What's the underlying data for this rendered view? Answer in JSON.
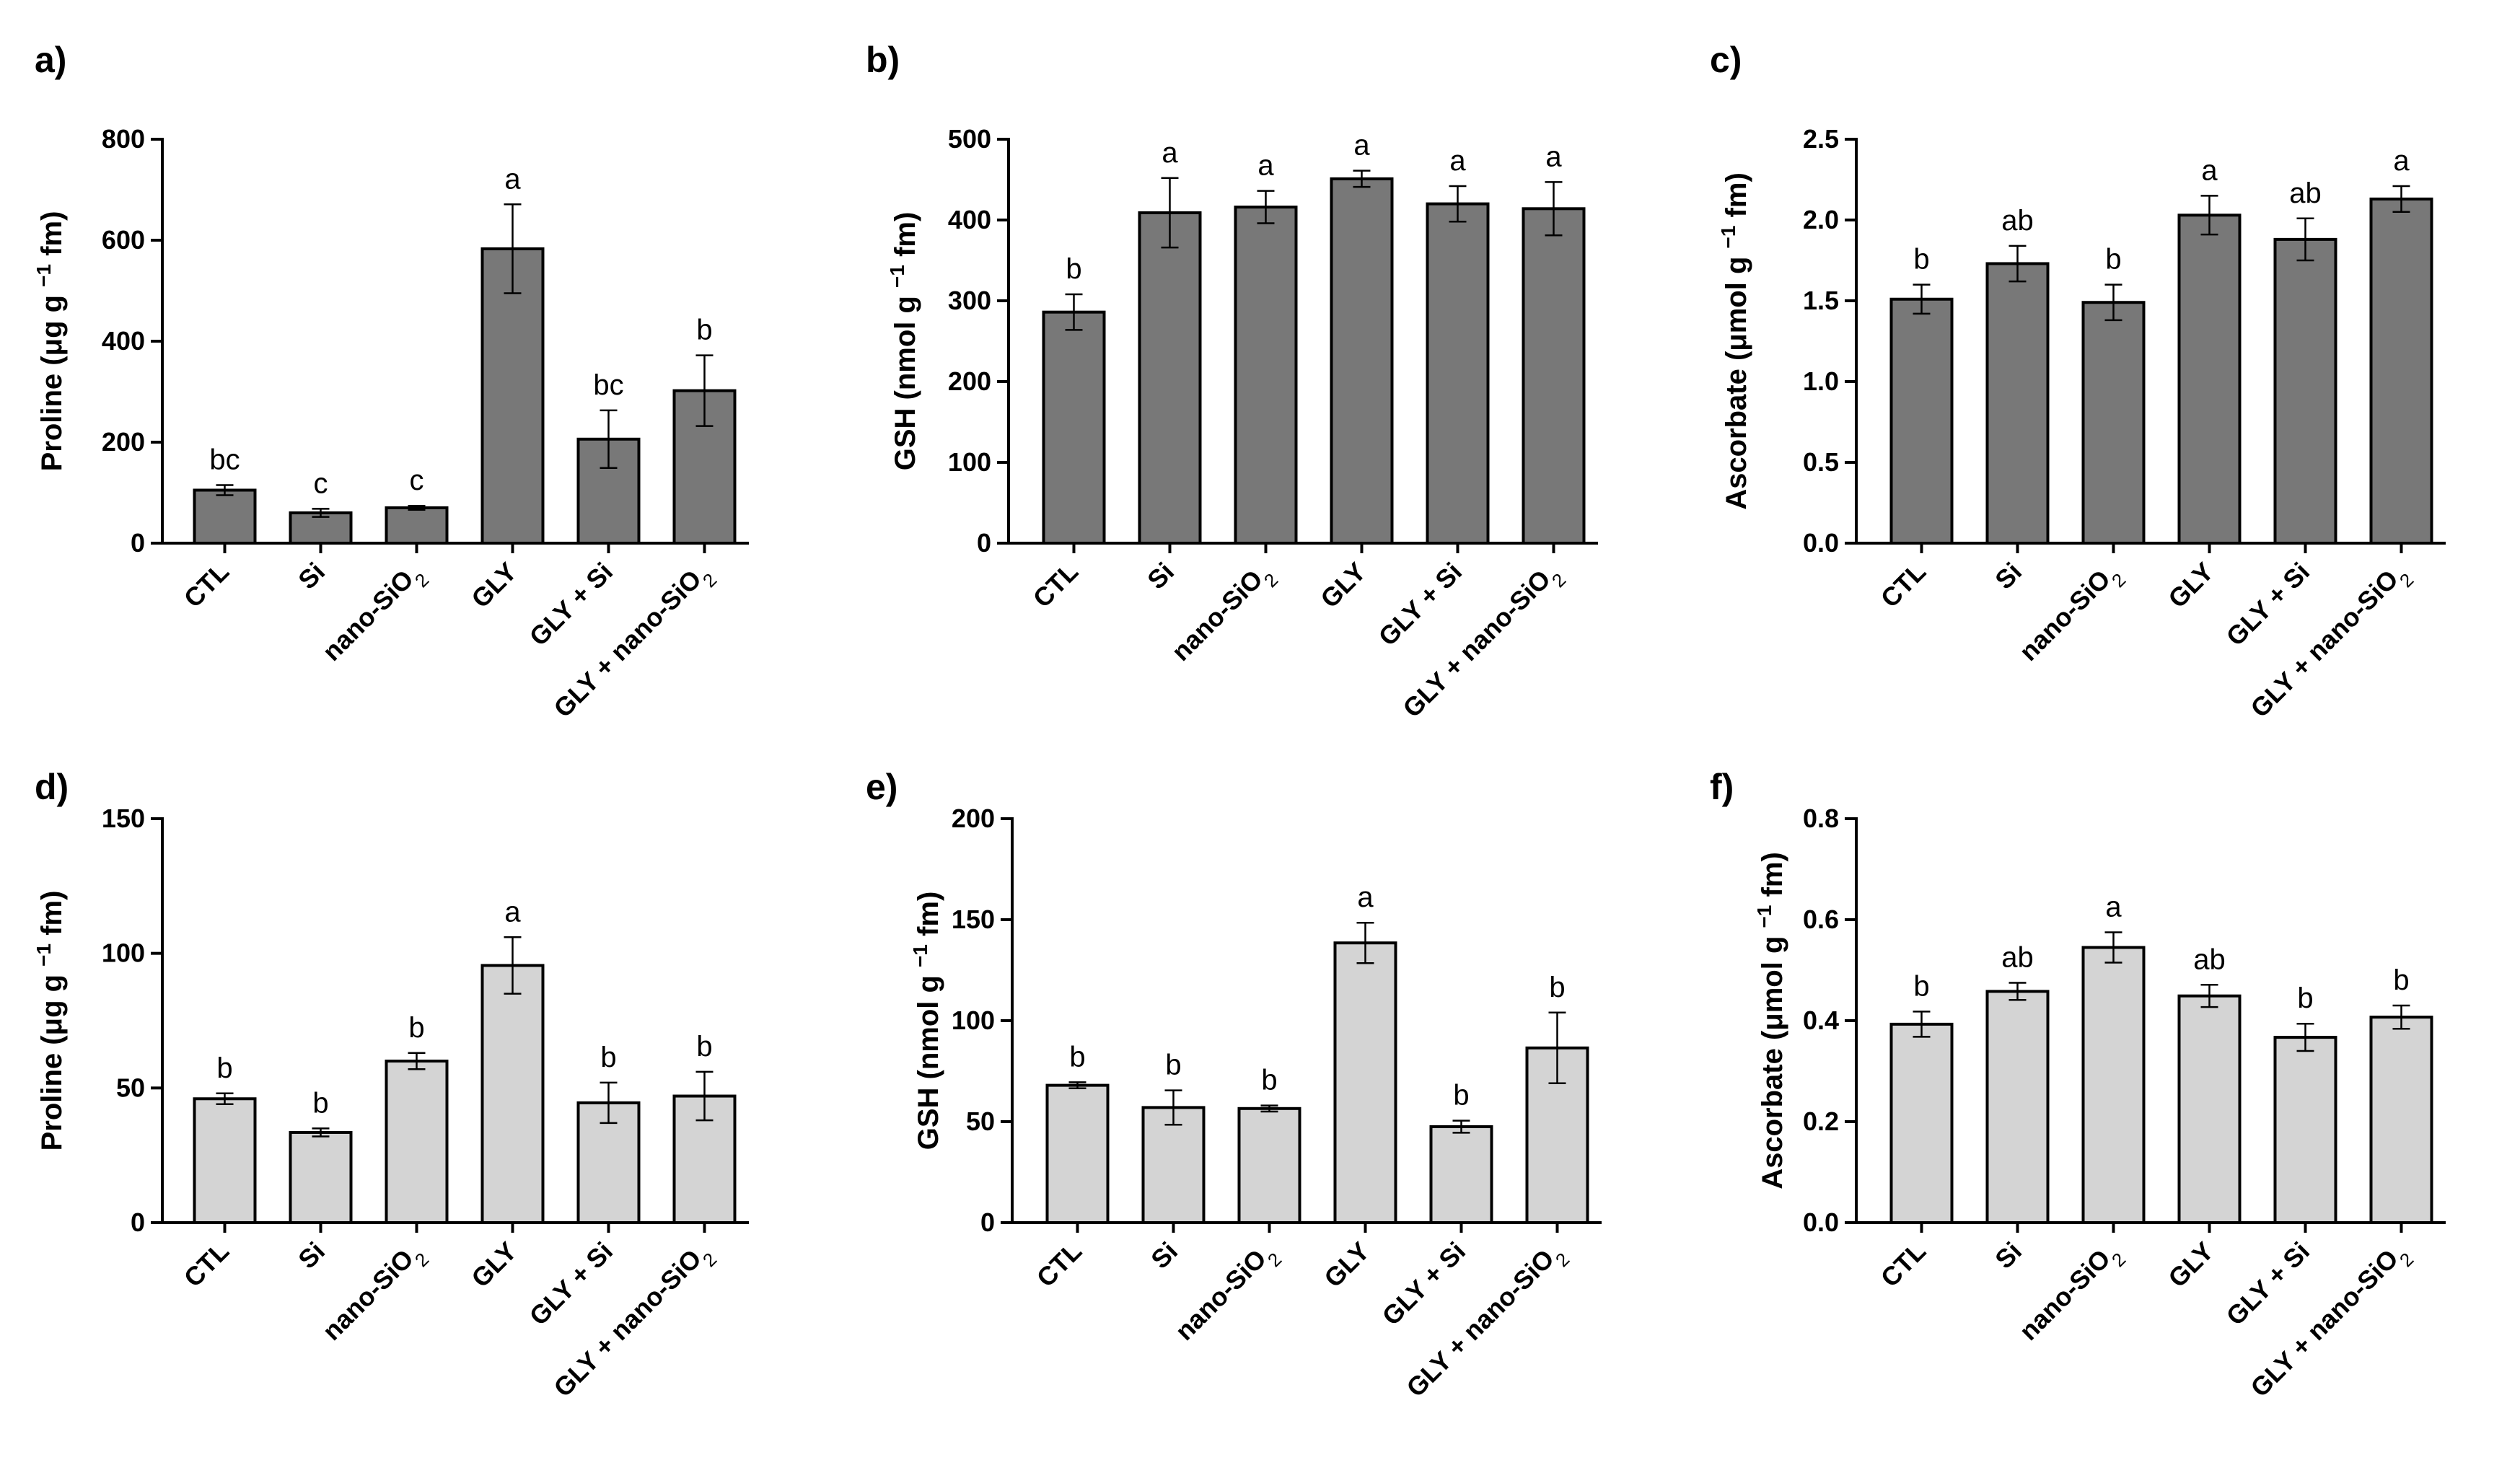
{
  "figure": {
    "colors": {
      "dark_bar": "#787878",
      "light_bar": "#d4d4d4",
      "axis": "#000000"
    }
  },
  "chart_data": [
    {
      "type": "bar",
      "panel": "a)",
      "title": "",
      "ylabel": "Proline (μg g⁻¹ fm)",
      "categories": [
        "CTL",
        "Si",
        "nano-SiO2",
        "GLY",
        "GLY + Si",
        "GLY + nano-SiO2"
      ],
      "values": [
        105,
        60,
        70,
        583,
        206,
        302
      ],
      "errors": [
        10,
        8,
        4,
        88,
        57,
        70
      ],
      "significance": [
        "bc",
        "c",
        "c",
        "a",
        "bc",
        "b"
      ],
      "ylim": [
        0,
        800
      ],
      "yticks": [
        "0",
        "200",
        "400",
        "600",
        "800"
      ],
      "bar_color": "#787878"
    },
    {
      "type": "bar",
      "panel": "b)",
      "title": "",
      "ylabel": "GSH (nmol g⁻¹ fm)",
      "categories": [
        "CTL",
        "Si",
        "nano-SiO2",
        "GLY",
        "GLY + Si",
        "GLY + nano-SiO2"
      ],
      "values": [
        286,
        409,
        416,
        451,
        420,
        414
      ],
      "errors": [
        22,
        43,
        20,
        10,
        22,
        33
      ],
      "significance": [
        "b",
        "a",
        "a",
        "a",
        "a",
        "a"
      ],
      "ylim": [
        0,
        500
      ],
      "yticks": [
        "0",
        "100",
        "200",
        "300",
        "400",
        "500"
      ],
      "bar_color": "#787878"
    },
    {
      "type": "bar",
      "panel": "c)",
      "title": "",
      "ylabel": "Ascorbate (μmol g⁻¹ fm)",
      "categories": [
        "CTL",
        "Si",
        "nano-SiO2",
        "GLY",
        "GLY + Si",
        "GLY + nano-SiO2"
      ],
      "values": [
        1.51,
        1.73,
        1.49,
        2.03,
        1.88,
        2.13
      ],
      "errors": [
        0.09,
        0.11,
        0.11,
        0.12,
        0.13,
        0.08
      ],
      "significance": [
        "b",
        "ab",
        "b",
        "a",
        "ab",
        "a"
      ],
      "ylim": [
        0,
        2.5
      ],
      "yticks": [
        "0.0",
        "0.5",
        "1.0",
        "1.5",
        "2.0",
        "2.5"
      ],
      "bar_color": "#787878"
    },
    {
      "type": "bar",
      "panel": "d)",
      "title": "",
      "ylabel": "Proline (μg g⁻¹ fm)",
      "categories": [
        "CTL",
        "Si",
        "nano-SiO2",
        "GLY",
        "GLY + Si",
        "GLY + nano-SiO2"
      ],
      "values": [
        46,
        33.5,
        60,
        95.5,
        44.5,
        47
      ],
      "errors": [
        2,
        1.5,
        3,
        10.5,
        7.5,
        9
      ],
      "significance": [
        "b",
        "b",
        "b",
        "a",
        "b",
        "b"
      ],
      "ylim": [
        0,
        150
      ],
      "yticks": [
        "0",
        "50",
        "100",
        "150"
      ],
      "bar_color": "#d4d4d4"
    },
    {
      "type": "bar",
      "panel": "e)",
      "title": "",
      "ylabel": "GSH (nmol g⁻¹ fm)",
      "categories": [
        "CTL",
        "Si",
        "nano-SiO2",
        "GLY",
        "GLY + Si",
        "GLY + nano-SiO2"
      ],
      "values": [
        68,
        57,
        56.5,
        138.5,
        47.5,
        86.5
      ],
      "errors": [
        1.5,
        8.5,
        1.5,
        10,
        3,
        17.5
      ],
      "significance": [
        "b",
        "b",
        "b",
        "a",
        "b",
        "b"
      ],
      "ylim": [
        0,
        200
      ],
      "yticks": [
        "0",
        "50",
        "100",
        "150",
        "200"
      ],
      "bar_color": "#d4d4d4"
    },
    {
      "type": "bar",
      "panel": "f)",
      "title": "",
      "ylabel": "Ascorbate (μmol g⁻¹ fm)",
      "categories": [
        "CTL",
        "Si",
        "nano-SiO2",
        "GLY",
        "GLY + Si",
        "GLY + nano-SiO2"
      ],
      "values": [
        0.393,
        0.458,
        0.545,
        0.449,
        0.367,
        0.407
      ],
      "errors": [
        0.025,
        0.017,
        0.03,
        0.022,
        0.027,
        0.023
      ],
      "significance": [
        "b",
        "ab",
        "a",
        "ab",
        "b",
        "b"
      ],
      "ylim": [
        0,
        0.8
      ],
      "yticks": [
        "0.0",
        "0.2",
        "0.4",
        "0.6",
        "0.8"
      ],
      "bar_color": "#d4d4d4"
    }
  ]
}
